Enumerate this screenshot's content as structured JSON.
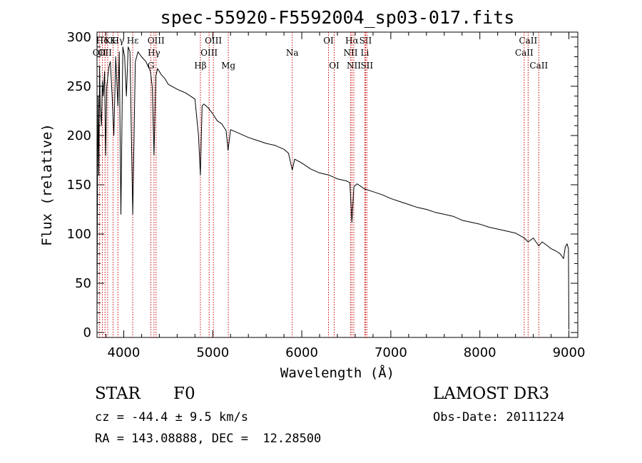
{
  "chart_data": {
    "type": "line",
    "title": "spec-55920-F5592004_sp03-017.fits",
    "xlabel": "Wavelength (Å)",
    "ylabel": "Flux (relative)",
    "xlim": [
      3700,
      9100
    ],
    "ylim": [
      -5,
      305
    ],
    "xticks": [
      4000,
      5000,
      6000,
      7000,
      8000,
      9000
    ],
    "yticks": [
      0,
      50,
      100,
      150,
      200,
      250,
      300
    ],
    "grid": false,
    "series": [
      {
        "name": "flux",
        "x": [
          3700,
          3705,
          3712,
          3720,
          3730,
          3735,
          3750,
          3760,
          3770,
          3785,
          3797,
          3810,
          3835,
          3850,
          3870,
          3889,
          3910,
          3935,
          3950,
          3968,
          3990,
          4010,
          4030,
          4050,
          4070,
          4101,
          4130,
          4160,
          4200,
          4250,
          4300,
          4320,
          4340,
          4360,
          4380,
          4420,
          4460,
          4500,
          4600,
          4700,
          4800,
          4840,
          4861,
          4880,
          4900,
          4950,
          5000,
          5050,
          5100,
          5150,
          5172,
          5200,
          5300,
          5400,
          5500,
          5600,
          5700,
          5800,
          5850,
          5893,
          5920,
          6000,
          6100,
          6200,
          6300,
          6400,
          6500,
          6540,
          6563,
          6585,
          6620,
          6700,
          6800,
          6900,
          7000,
          7100,
          7200,
          7300,
          7400,
          7500,
          7600,
          7700,
          7800,
          7900,
          8000,
          8100,
          8200,
          8300,
          8400,
          8498,
          8542,
          8600,
          8662,
          8700,
          8760,
          8800,
          8850,
          8900,
          8940,
          8960,
          8980,
          8995,
          9000
        ],
        "y": [
          0,
          150,
          240,
          160,
          270,
          230,
          210,
          255,
          240,
          265,
          180,
          250,
          270,
          275,
          240,
          200,
          280,
          230,
          285,
          120,
          290,
          280,
          240,
          290,
          285,
          120,
          275,
          285,
          280,
          275,
          265,
          250,
          180,
          260,
          268,
          262,
          258,
          252,
          247,
          243,
          237,
          200,
          160,
          230,
          232,
          228,
          222,
          215,
          212,
          205,
          185,
          206,
          202,
          198,
          195,
          192,
          190,
          186,
          182,
          165,
          176,
          172,
          166,
          162,
          160,
          156,
          154,
          152,
          112,
          148,
          151,
          146,
          143,
          140,
          136,
          133,
          130,
          127,
          125,
          122,
          120,
          118,
          114,
          112,
          110,
          107,
          105,
          103,
          101,
          96,
          92,
          96,
          88,
          92,
          88,
          85,
          83,
          80,
          75,
          87,
          90,
          85,
          3
        ]
      }
    ],
    "emission_lines": [
      {
        "label": "Hδ",
        "x": 3760,
        "row": 0
      },
      {
        "label": "K",
        "x": 3820,
        "row": 0
      },
      {
        "label": "K",
        "x": 3880,
        "row": 0
      },
      {
        "label": "Hγ",
        "x": 3935,
        "row": 0
      },
      {
        "label": "Hε",
        "x": 4101,
        "row": 0
      },
      {
        "label": "OII",
        "x": 3727,
        "row": 1
      },
      {
        "label": "OII",
        "x": 3790,
        "row": 1
      },
      {
        "label": "OIII",
        "x": 4363,
        "row": 0
      },
      {
        "label": "Hγ",
        "x": 4340,
        "row": 1
      },
      {
        "label": "G",
        "x": 4305,
        "row": 2
      },
      {
        "label": "OIII",
        "x": 5007,
        "row": 0
      },
      {
        "label": "OIII",
        "x": 4959,
        "row": 1
      },
      {
        "label": "Hβ",
        "x": 4861,
        "row": 2
      },
      {
        "label": "Mg",
        "x": 5175,
        "row": 2
      },
      {
        "label": "Na",
        "x": 5893,
        "row": 1
      },
      {
        "label": "OI",
        "x": 6300,
        "row": 0
      },
      {
        "label": "OI",
        "x": 6364,
        "row": 2
      },
      {
        "label": "Hα",
        "x": 6563,
        "row": 0
      },
      {
        "label": "SII",
        "x": 6716,
        "row": 0
      },
      {
        "label": "NII",
        "x": 6548,
        "row": 1
      },
      {
        "label": "Li",
        "x": 6708,
        "row": 1
      },
      {
        "label": "NII",
        "x": 6584,
        "row": 2
      },
      {
        "label": "SII",
        "x": 6731,
        "row": 2
      },
      {
        "label": "CaII",
        "x": 8542,
        "row": 0
      },
      {
        "label": "CaII",
        "x": 8498,
        "row": 1
      },
      {
        "label": "CaII",
        "x": 8662,
        "row": 2
      }
    ]
  },
  "info": {
    "object_type": "STAR",
    "subclass": "F0",
    "survey": "LAMOST DR3",
    "redshift": "cz = -44.4 ± 9.5 km/s",
    "obs_date": "Obs-Date: 20111224",
    "coords": "RA = 143.08888, DEC =  12.28500"
  },
  "colors": {
    "axis": "#000000",
    "spectrum": "#000000",
    "line_marker": "#cc0000"
  }
}
